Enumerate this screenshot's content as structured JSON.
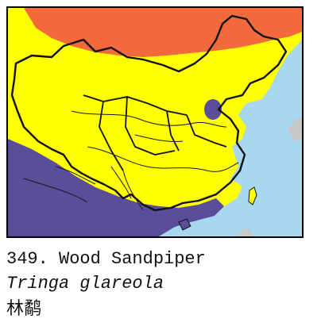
{
  "caption": {
    "number_name": "349. Wood Sandpiper",
    "scientific_name": "Tringa glareola",
    "chinese_name": "林鹬"
  },
  "legend_colors": {
    "sea": "#a8d7f0",
    "breeding_range": "#f26a3c",
    "passage_range": "#ffff00",
    "wintering_range": "#5a4d9a",
    "border": "#111111",
    "river": "#1a1a1a",
    "foreign_land": "#c8c8c8"
  }
}
